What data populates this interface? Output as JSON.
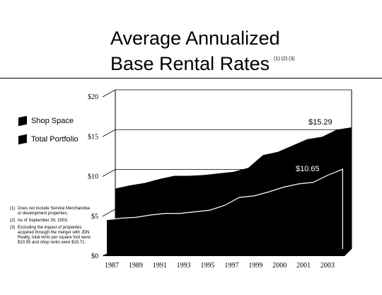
{
  "header": {
    "title_line1": "Average Annualized",
    "title_line2": "Base Rental Rates",
    "footnote_refs": "(1) (2) (3)"
  },
  "legend": [
    {
      "label": "Shop Space",
      "color": "#000000"
    },
    {
      "label": "Total Portfolio",
      "color": "#000000"
    }
  ],
  "notes": [
    {
      "num": "(1)",
      "text": "Does not include Service Merchandise or development properties."
    },
    {
      "num": "(2)",
      "text": "As of September 30, 2003."
    },
    {
      "num": "(3)",
      "text": "Excluding the impact of properties acquired through the merger with JDN Realty, total rents per square foot were $10.95 and shop rents were $15.71."
    }
  ],
  "chart_data": {
    "type": "area",
    "x": [
      1987,
      1988,
      1989,
      1990,
      1991,
      1992,
      1993,
      1994,
      1995,
      1996,
      1997,
      1998,
      1999,
      2000,
      2001,
      2002,
      2003
    ],
    "x_tick_labels": [
      "1987",
      "1989",
      "1991",
      "1993",
      "1995",
      "1997",
      "1999",
      "2000",
      "2001",
      "2003"
    ],
    "y_tick_labels": [
      "$0",
      "$5",
      "$10",
      "$15",
      "$20"
    ],
    "ylim": [
      0,
      20
    ],
    "grid": true,
    "legend_position": "left",
    "series": [
      {
        "name": "Shop Space",
        "values": [
          7.6,
          8.0,
          8.3,
          8.8,
          9.2,
          9.2,
          9.3,
          9.5,
          9.7,
          10.2,
          11.8,
          12.2,
          13.0,
          13.8,
          14.1,
          15.0,
          15.29
        ],
        "end_label": "$15.29"
      },
      {
        "name": "Total Portfolio",
        "values": [
          4.3,
          4.5,
          4.6,
          4.9,
          5.1,
          5.1,
          5.3,
          5.5,
          6.1,
          7.1,
          7.3,
          7.8,
          8.4,
          8.8,
          9.0,
          9.9,
          10.65
        ],
        "end_label": "$10.65"
      }
    ]
  }
}
